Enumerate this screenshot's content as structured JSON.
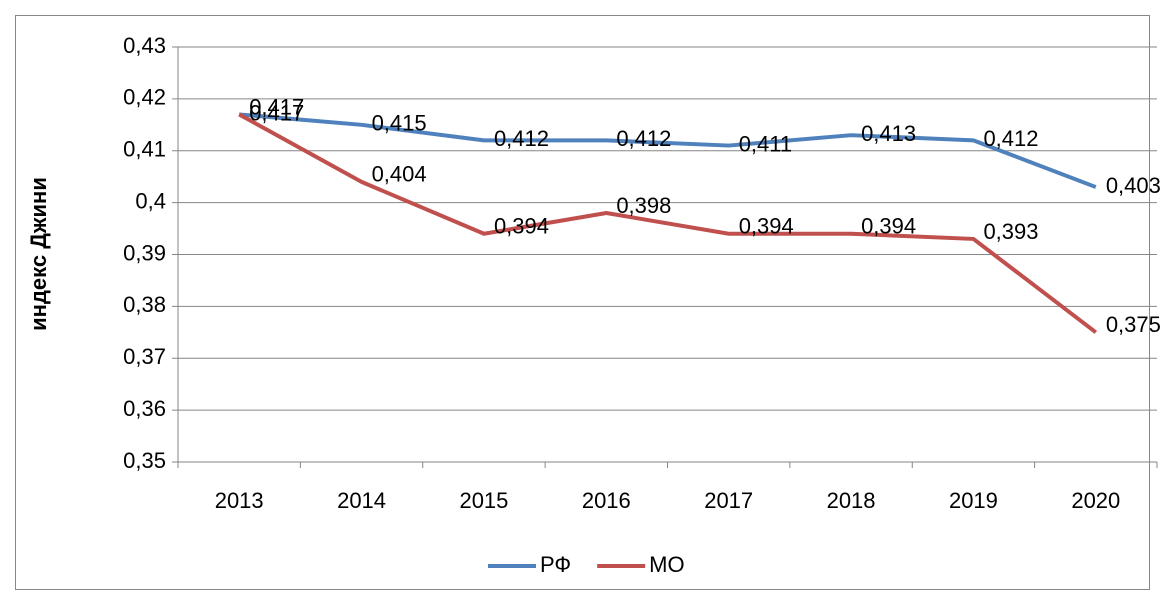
{
  "chart_data": {
    "type": "line",
    "y_label": "индекс Джини",
    "categories": [
      "2013",
      "2014",
      "2015",
      "2016",
      "2017",
      "2018",
      "2019",
      "2020"
    ],
    "series": [
      {
        "name": "РФ",
        "color": "#4f81bd",
        "values": [
          0.417,
          0.415,
          0.412,
          0.412,
          0.411,
          0.413,
          0.412,
          0.403
        ],
        "value_labels": [
          "0,417",
          "0,415",
          "0,412",
          "0,412",
          "0,411",
          "0,413",
          "0,412",
          "0,403"
        ]
      },
      {
        "name": "МО",
        "color": "#c0504d",
        "values": [
          0.417,
          0.404,
          0.394,
          0.398,
          0.394,
          0.394,
          0.393,
          0.375
        ],
        "value_labels": [
          "0,417",
          "0,404",
          "0,394",
          "0,398",
          "0,394",
          "0,394",
          "0,393",
          "0,375"
        ]
      }
    ],
    "ylim": [
      0.35,
      0.43
    ],
    "yticks": [
      {
        "value": 0.35,
        "label": "0,35"
      },
      {
        "value": 0.36,
        "label": "0,36"
      },
      {
        "value": 0.37,
        "label": "0,37"
      },
      {
        "value": 0.38,
        "label": "0,38"
      },
      {
        "value": 0.39,
        "label": "0,39"
      },
      {
        "value": 0.4,
        "label": "0,4"
      },
      {
        "value": 0.41,
        "label": "0,41"
      },
      {
        "value": 0.42,
        "label": "0,42"
      },
      {
        "value": 0.43,
        "label": "0,43"
      }
    ],
    "grid": true,
    "legend": "bottom"
  }
}
